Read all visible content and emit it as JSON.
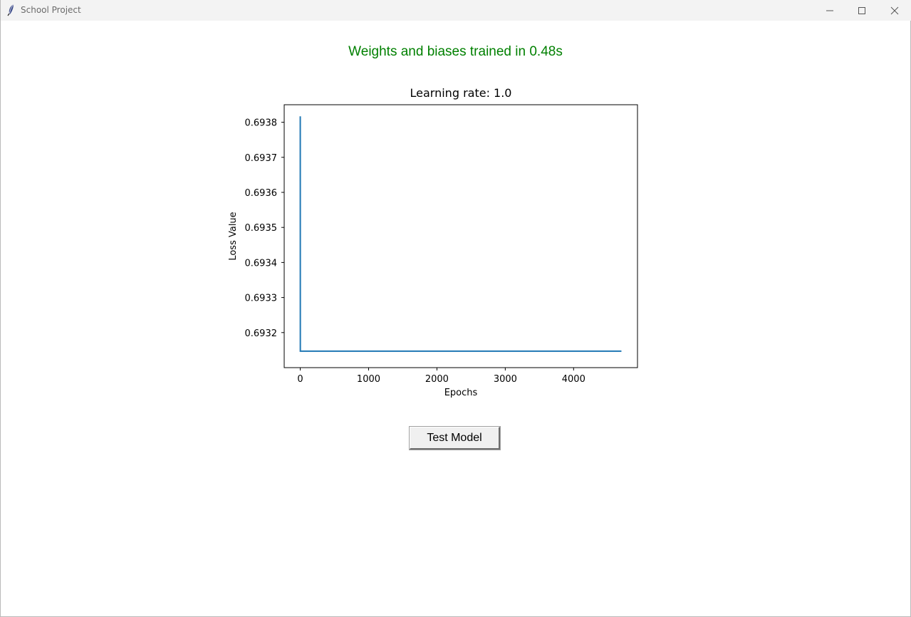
{
  "window": {
    "title": "School Project",
    "icon": "feather-icon",
    "controls": [
      "minimize-icon",
      "maximize-icon",
      "close-icon"
    ]
  },
  "status": {
    "message": "Weights and biases trained in 0.48s",
    "color": "#008000"
  },
  "chart_data": {
    "type": "line",
    "title": "Learning rate: 1.0",
    "xlabel": "Epochs",
    "ylabel": "Loss Value",
    "xlim": [
      -235,
      4935
    ],
    "ylim": [
      0.6931,
      0.69385
    ],
    "xticks": [
      0,
      1000,
      2000,
      3000,
      4000
    ],
    "xtick_labels": [
      "0",
      "1000",
      "2000",
      "3000",
      "4000"
    ],
    "yticks": [
      0.6932,
      0.6933,
      0.6934,
      0.6935,
      0.6936,
      0.6937,
      0.6938
    ],
    "ytick_labels": [
      "0.6932",
      "0.6933",
      "0.6934",
      "0.6935",
      "0.6936",
      "0.6937",
      "0.6938"
    ],
    "grid": false,
    "series": [
      {
        "color": "#1f77b4",
        "x": [
          0,
          1,
          4700
        ],
        "y": [
          0.693817,
          0.693147,
          0.693147
        ]
      }
    ]
  },
  "actions": {
    "test_model_label": "Test Model"
  }
}
